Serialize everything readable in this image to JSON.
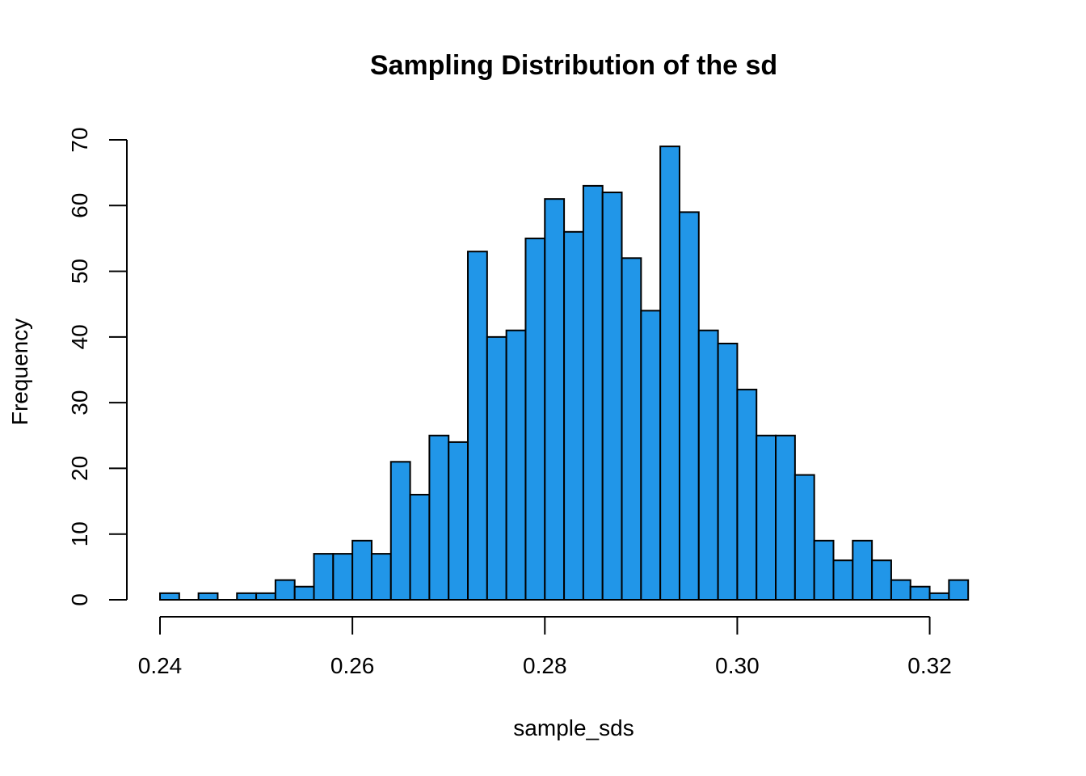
{
  "chart_data": {
    "type": "bar",
    "title": "Sampling Distribution of the sd",
    "xlabel": "sample_sds",
    "ylabel": "Frequency",
    "bin_width": 0.002,
    "bin_start": 0.24,
    "values": [
      1,
      0,
      1,
      0,
      1,
      1,
      3,
      2,
      7,
      7,
      9,
      7,
      21,
      16,
      25,
      24,
      53,
      40,
      41,
      55,
      61,
      56,
      63,
      62,
      52,
      44,
      69,
      59,
      41,
      39,
      32,
      25,
      25,
      19,
      9,
      6,
      9,
      6,
      3,
      2,
      1,
      3
    ],
    "xlim": [
      0.24,
      0.326
    ],
    "ylim": [
      0,
      70
    ],
    "x_ticks": [
      0.24,
      0.26,
      0.28,
      0.3,
      0.32
    ],
    "x_tick_labels": [
      "0.24",
      "0.26",
      "0.28",
      "0.30",
      "0.32"
    ],
    "y_ticks": [
      0,
      10,
      20,
      30,
      40,
      50,
      60,
      70
    ],
    "y_tick_labels": [
      "0",
      "10",
      "20",
      "30",
      "40",
      "50",
      "60",
      "70"
    ],
    "bar_color": "#2196e8",
    "grid": false
  }
}
